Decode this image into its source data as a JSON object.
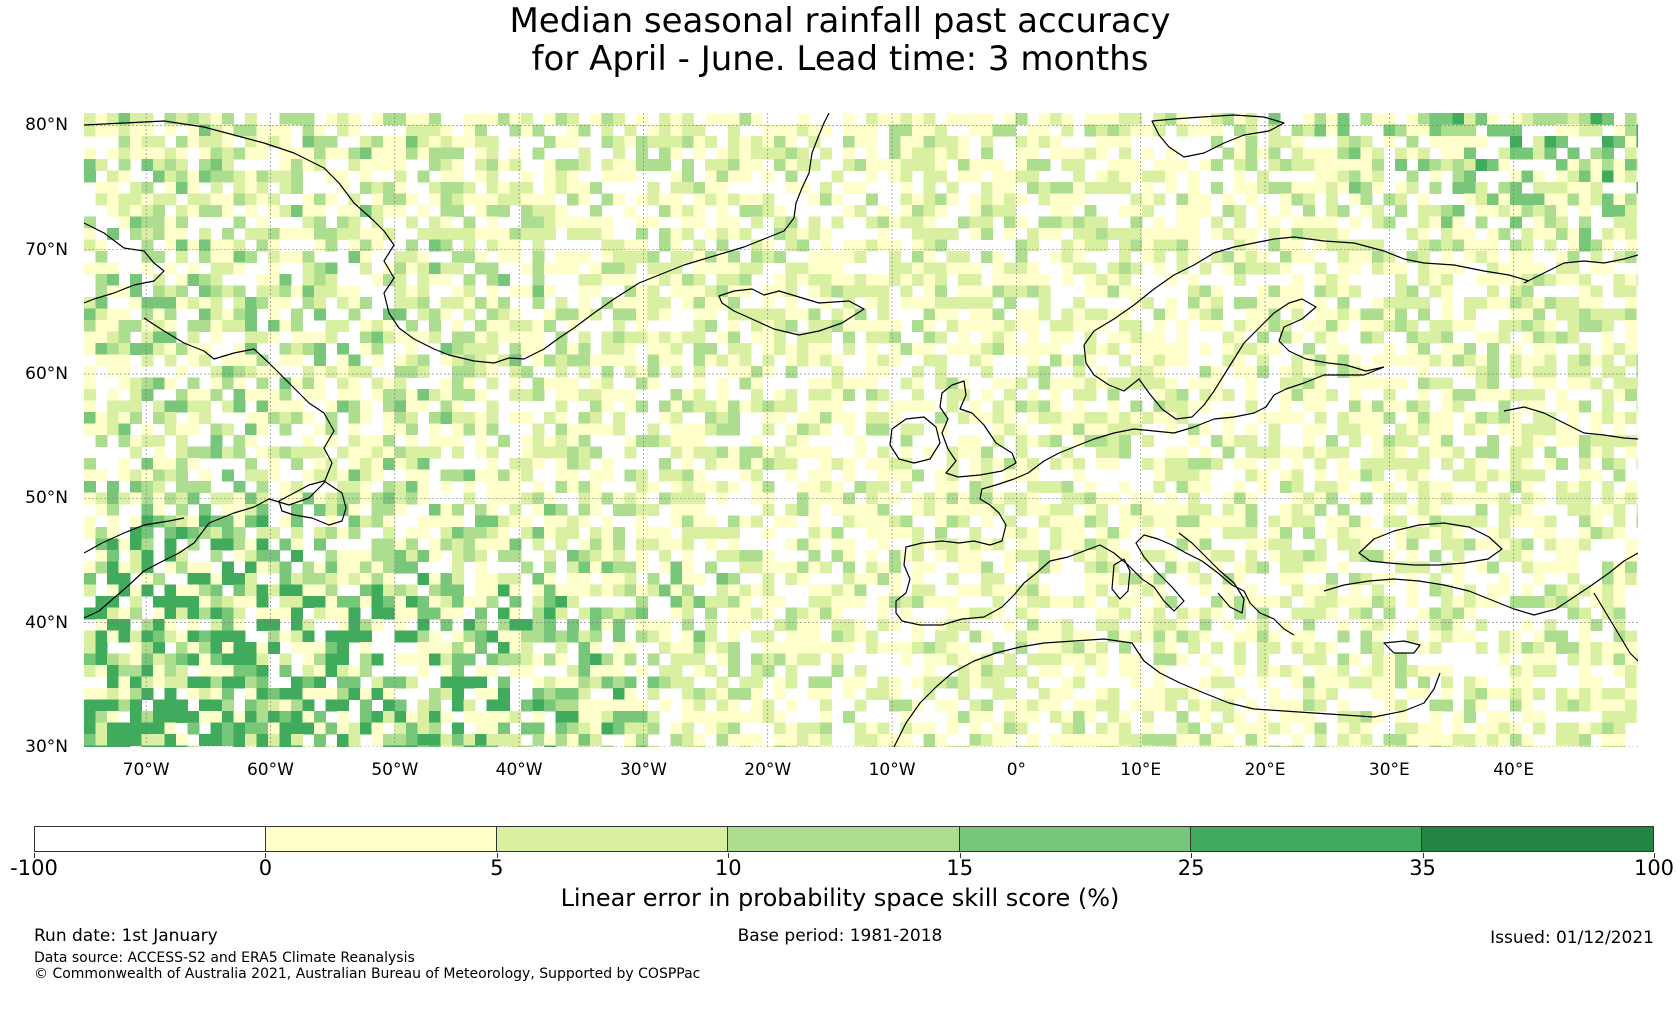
{
  "title": {
    "line1": "Median seasonal rainfall past accuracy",
    "line2": "for April - June. Lead time: 3 months"
  },
  "map": {
    "lon_range": [
      -75,
      50
    ],
    "lat_range": [
      30,
      81
    ],
    "lat_labels": [
      {
        "value": 80,
        "text": "80°N"
      },
      {
        "value": 70,
        "text": "70°N"
      },
      {
        "value": 60,
        "text": "60°N"
      },
      {
        "value": 50,
        "text": "50°N"
      },
      {
        "value": 40,
        "text": "40°N"
      },
      {
        "value": 30,
        "text": "30°N"
      }
    ],
    "lon_labels": [
      {
        "value": -70,
        "text": "70°W"
      },
      {
        "value": -60,
        "text": "60°W"
      },
      {
        "value": -50,
        "text": "50°W"
      },
      {
        "value": -40,
        "text": "40°W"
      },
      {
        "value": -30,
        "text": "30°W"
      },
      {
        "value": -20,
        "text": "20°W"
      },
      {
        "value": -10,
        "text": "10°W"
      },
      {
        "value": 0,
        "text": "0°"
      },
      {
        "value": 10,
        "text": "10°E"
      },
      {
        "value": 20,
        "text": "20°E"
      },
      {
        "value": 30,
        "text": "30°E"
      },
      {
        "value": 40,
        "text": "40°E"
      }
    ],
    "gridlines": true
  },
  "colorbar": {
    "label": "Linear error in probability space skill score (%)",
    "bins": [
      {
        "from": "-100",
        "to": "0",
        "color": "#ffffff"
      },
      {
        "from": "0",
        "to": "5",
        "color": "#ffffcc"
      },
      {
        "from": "5",
        "to": "10",
        "color": "#d9f0a3"
      },
      {
        "from": "10",
        "to": "15",
        "color": "#addd8e"
      },
      {
        "from": "15",
        "to": "25",
        "color": "#78c679"
      },
      {
        "from": "25",
        "to": "35",
        "color": "#41ab5d"
      },
      {
        "from": "35",
        "to": "100",
        "color": "#238443"
      }
    ],
    "tick_labels": [
      "-100",
      "0",
      "5",
      "10",
      "15",
      "25",
      "35",
      "100"
    ]
  },
  "footer": {
    "run_date": "Run date: 1st January",
    "base_period": "Base period: 1981-2018",
    "issued": "Issued: 01/12/2021",
    "data_source": "Data source: ACCESS-S2 and ERA5 Climate Reanalysis",
    "copyright": "© Commonwealth of Australia 2021, Australian Bureau of Meteorology, Supported by COSPPac"
  }
}
